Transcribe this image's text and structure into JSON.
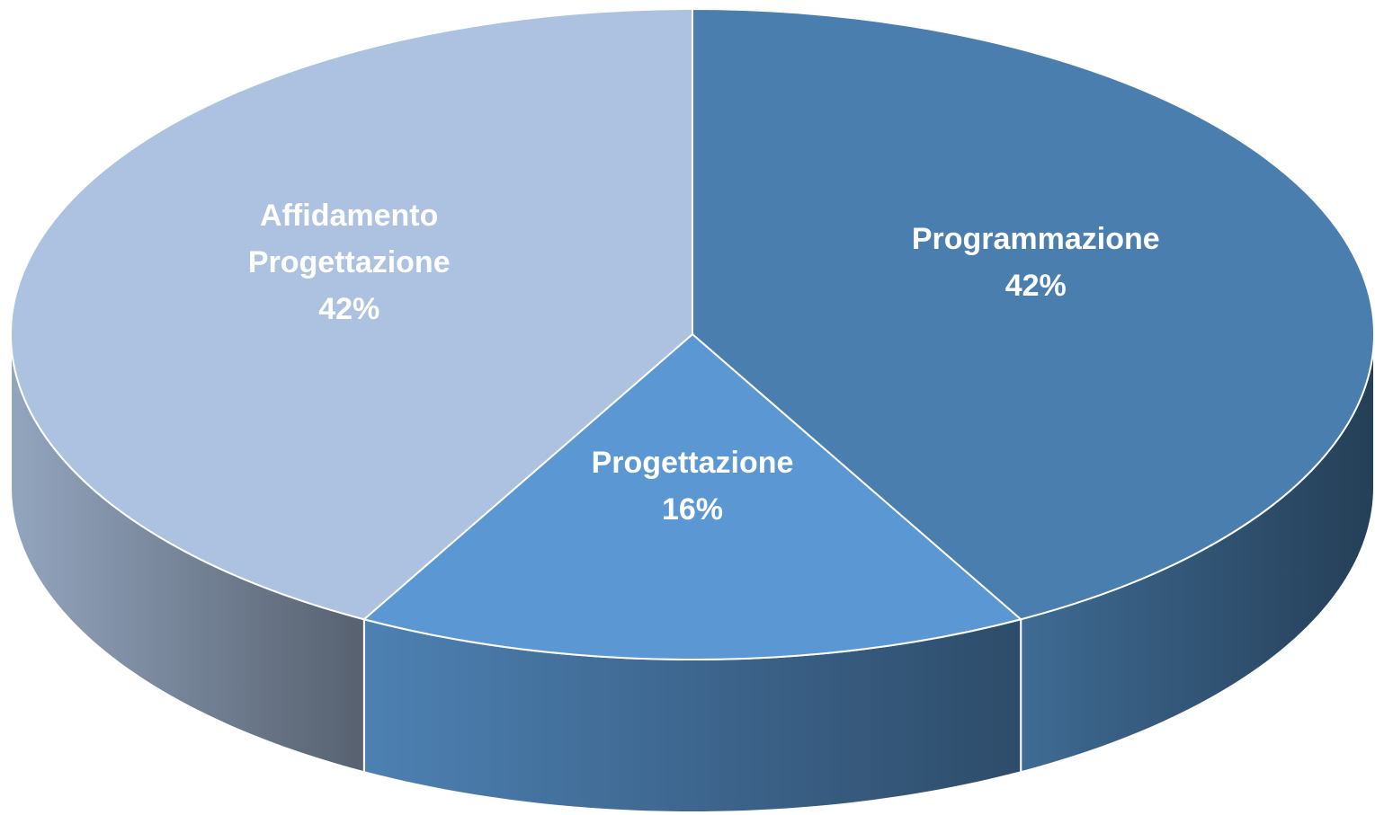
{
  "chart_data": {
    "type": "pie3d",
    "categories": [
      "Programmazione",
      "Progettazione",
      "Affidamento Progettazione"
    ],
    "values": [
      42,
      16,
      42
    ],
    "value_labels": [
      "42%",
      "16%",
      "42%"
    ],
    "colors": [
      "#4a7eae",
      "#5b98d3",
      "#adc2e0"
    ]
  }
}
